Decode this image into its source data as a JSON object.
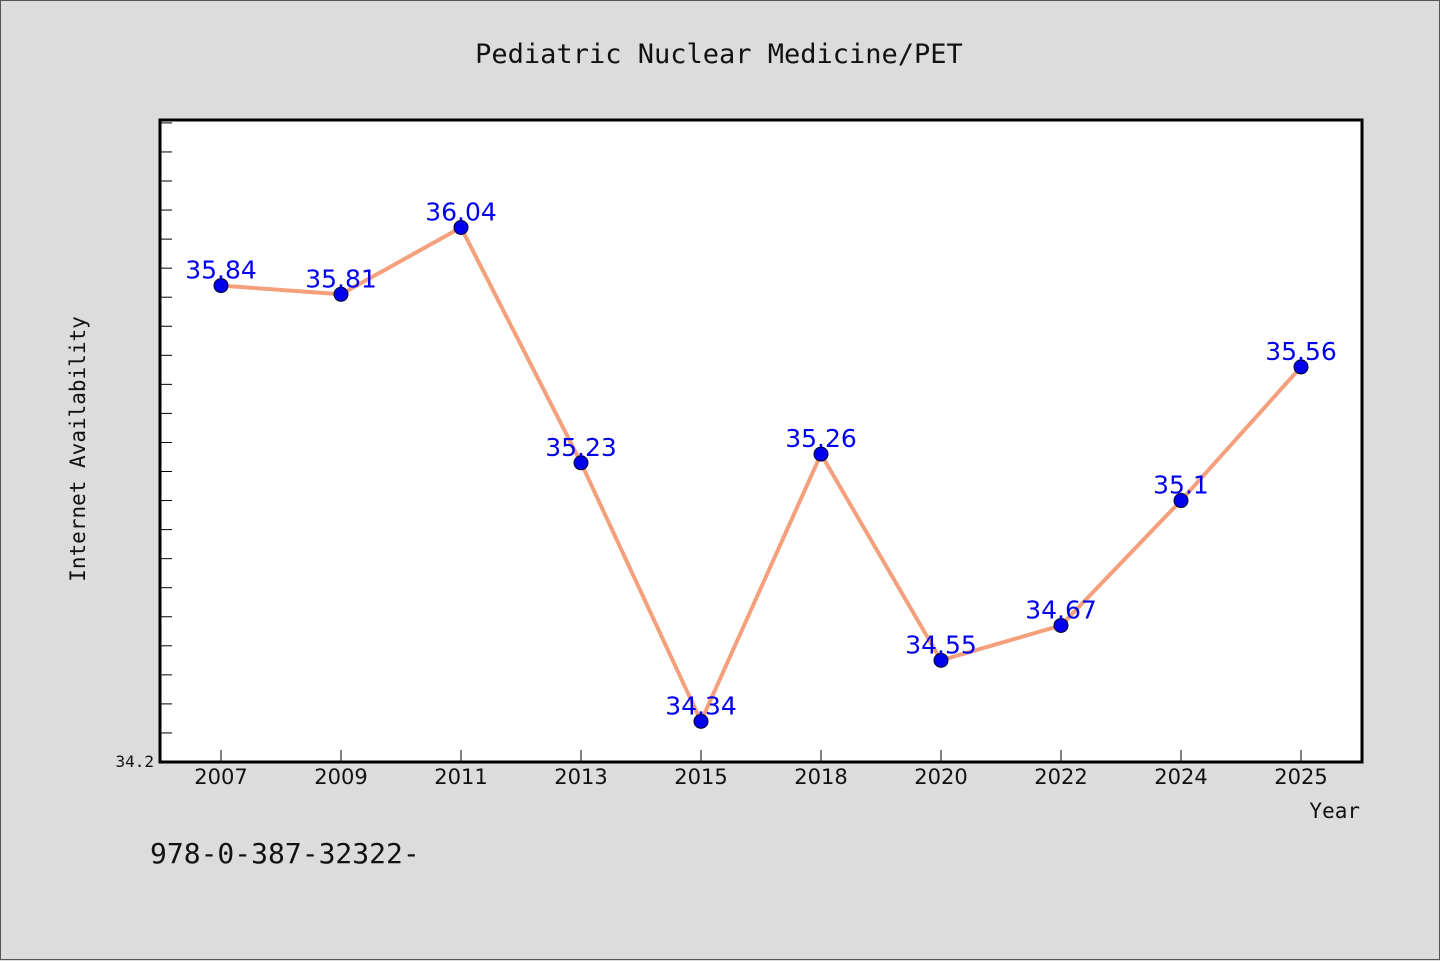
{
  "chart_data": {
    "type": "line",
    "title": "Pediatric Nuclear Medicine/PET",
    "xlabel": "Year",
    "ylabel": "Internet Availability",
    "categories": [
      "2007",
      "2009",
      "2011",
      "2013",
      "2015",
      "2018",
      "2020",
      "2022",
      "2024",
      "2025"
    ],
    "series": [
      {
        "values": [
          35.84,
          35.81,
          36.04,
          35.23,
          34.34,
          35.26,
          34.55,
          34.67,
          35.1,
          35.56
        ]
      }
    ],
    "data_labels": [
      "35.84",
      "35.81",
      "36.04",
      "35.23",
      "34.34",
      "35.26",
      "34.55",
      "34.67",
      "35.1",
      "35.56"
    ],
    "ylim": [
      34.2,
      36.41
    ],
    "y_tick_labels_shown": [
      "34.2"
    ],
    "grid": false,
    "legend": "none",
    "colors": {
      "line": "#f4a07c",
      "marker": "#0000ee",
      "data_label": "#0000ee",
      "background": "#dcdcdc",
      "plot_background": "#ffffff"
    }
  },
  "footer": {
    "text": "978-0-387-32322-"
  }
}
